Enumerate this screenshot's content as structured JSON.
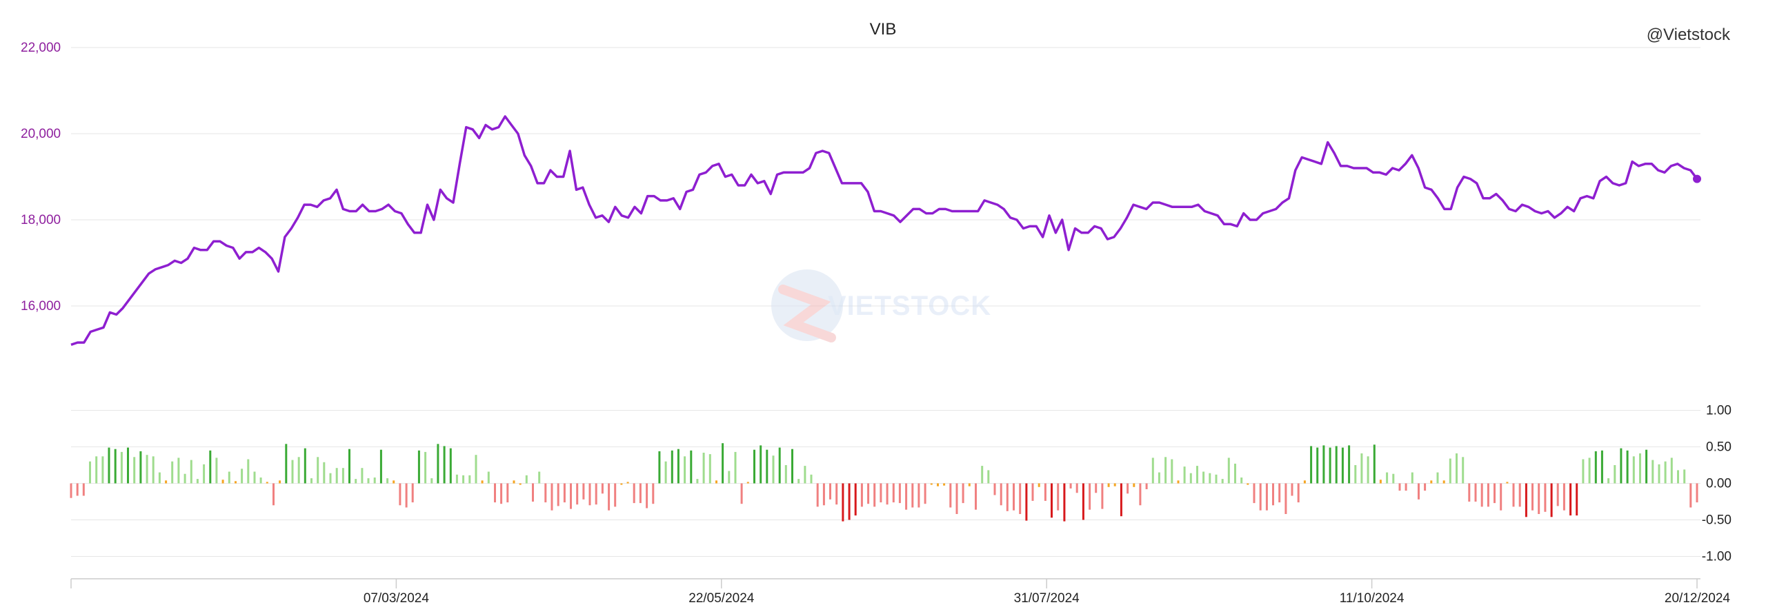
{
  "chart_data": {
    "type": "line",
    "title": "VIB",
    "source_label": "@Vietstock",
    "watermark_text": "VIETSTOCK",
    "price_panel": {
      "ylim": [
        14000,
        22000
      ],
      "yticks": [
        16000,
        18000,
        20000,
        22000
      ],
      "ytick_labels": [
        "16,000",
        "18,000",
        "20,000",
        "22,000"
      ],
      "line_color": "#8e1fd0",
      "tick_color": "#8e1f9e",
      "series": [
        {
          "values": [
            15100,
            15150,
            15150,
            15400,
            15450,
            15500,
            15850,
            15800,
            15950,
            16150,
            16350,
            16550,
            16750,
            16850,
            16900,
            16950,
            17050,
            17000,
            17100,
            17350,
            17300,
            17300,
            17500,
            17500,
            17400,
            17350,
            17100,
            17250,
            17250,
            17350,
            17250,
            17100,
            16800,
            17600,
            17800,
            18050,
            18350,
            18350,
            18300,
            18450,
            18500,
            18700,
            18250,
            18200,
            18200,
            18350,
            18200,
            18200,
            18250,
            18350,
            18200,
            18150,
            17900,
            17700,
            17700,
            18350,
            18000,
            18700,
            18500,
            18400,
            19300,
            20150,
            20100,
            19900,
            20200,
            20100,
            20150,
            20400,
            20200,
            20000,
            19500,
            19250,
            18850,
            18850,
            19150,
            19000,
            19000,
            19600,
            18700,
            18750,
            18350,
            18050,
            18100,
            17950,
            18300,
            18100,
            18050,
            18300,
            18150,
            18550,
            18550,
            18450,
            18450,
            18500,
            18250,
            18650,
            18700,
            19050,
            19100,
            19250,
            19300,
            19000,
            19050,
            18800,
            18800,
            19050,
            18850,
            18900,
            18600,
            19050,
            19100,
            19100,
            19100,
            19100,
            19200,
            19550,
            19600,
            19550,
            19200,
            18850,
            18850,
            18850,
            18850,
            18650,
            18200,
            18200,
            18150,
            18100,
            17950,
            18100,
            18250,
            18250,
            18150,
            18150,
            18250,
            18250,
            18200,
            18200,
            18200,
            18200,
            18200,
            18450,
            18400,
            18350,
            18250,
            18050,
            18000,
            17800,
            17850,
            17850,
            17600,
            18100,
            17700,
            18000,
            17300,
            17800,
            17700,
            17700,
            17850,
            17800,
            17550,
            17600,
            17800,
            18050,
            18350,
            18300,
            18250,
            18400,
            18400,
            18350,
            18300,
            18300,
            18300,
            18300,
            18350,
            18200,
            18150,
            18100,
            17900,
            17900,
            17850,
            18150,
            18000,
            18000,
            18150,
            18200,
            18250,
            18400,
            18500,
            19150,
            19450,
            19400,
            19350,
            19300,
            19800,
            19550,
            19250,
            19250,
            19200,
            19200,
            19200,
            19100,
            19100,
            19050,
            19200,
            19150,
            19300,
            19500,
            19200,
            18750,
            18700,
            18500,
            18250,
            18250,
            18750,
            19000,
            18950,
            18850,
            18500,
            18500,
            18600,
            18450,
            18250,
            18200,
            18350,
            18300,
            18200,
            18150,
            18200,
            18050,
            18150,
            18300,
            18200,
            18500,
            18550,
            18500,
            18900,
            19000,
            18850,
            18800,
            18850,
            19350,
            19250,
            19300,
            19300,
            19150,
            19100,
            19250,
            19300,
            19200,
            19150,
            18950
          ]
        }
      ]
    },
    "oscillator_panel": {
      "ylim": [
        -1.25,
        1.25
      ],
      "yticks": [
        -1.0,
        -0.5,
        0.0,
        0.5,
        1.0
      ],
      "ytick_labels": [
        "-1.00",
        "-0.50",
        "0.00",
        "0.50",
        "1.00"
      ],
      "colors": {
        "strong_pos": "#3aaa35",
        "weak_pos": "#9fdc8e",
        "neutral": "#f5a623",
        "weak_neg": "#f08080",
        "strong_neg": "#d7191c"
      },
      "values": [
        -0.2,
        -0.17,
        -0.17,
        0.3,
        0.37,
        0.37,
        0.49,
        0.47,
        0.43,
        0.49,
        0.36,
        0.44,
        0.39,
        0.37,
        0.15,
        0.04,
        0.3,
        0.35,
        0.13,
        0.32,
        0.06,
        0.26,
        0.45,
        0.35,
        0.05,
        0.16,
        0.03,
        0.2,
        0.33,
        0.16,
        0.08,
        0.02,
        -0.3,
        0.04,
        0.54,
        0.32,
        0.36,
        0.48,
        0.07,
        0.36,
        0.29,
        0.14,
        0.21,
        0.21,
        0.47,
        0.06,
        0.21,
        0.07,
        0.08,
        0.46,
        0.07,
        0.04,
        -0.3,
        -0.33,
        -0.26,
        0.45,
        0.43,
        0.07,
        0.54,
        0.51,
        0.48,
        0.12,
        0.11,
        0.11,
        0.39,
        0.04,
        0.16,
        -0.26,
        -0.28,
        -0.26,
        0.04,
        -0.02,
        0.11,
        -0.25,
        0.16,
        -0.26,
        -0.37,
        -0.31,
        -0.26,
        -0.35,
        -0.29,
        -0.22,
        -0.3,
        -0.29,
        -0.14,
        -0.37,
        -0.32,
        -0.02,
        0.02,
        -0.27,
        -0.27,
        -0.34,
        -0.28,
        0.44,
        0.3,
        0.45,
        0.47,
        0.37,
        0.45,
        0.06,
        0.42,
        0.4,
        0.04,
        0.55,
        0.17,
        0.43,
        -0.28,
        0.02,
        0.46,
        0.52,
        0.46,
        0.38,
        0.49,
        0.25,
        0.47,
        0.06,
        0.24,
        0.12,
        -0.32,
        -0.3,
        -0.22,
        -0.29,
        -0.52,
        -0.5,
        -0.44,
        -0.32,
        -0.28,
        -0.32,
        -0.26,
        -0.29,
        -0.26,
        -0.27,
        -0.36,
        -0.33,
        -0.33,
        -0.28,
        -0.02,
        -0.04,
        -0.03,
        -0.33,
        -0.42,
        -0.27,
        -0.04,
        -0.36,
        0.24,
        0.18,
        -0.16,
        -0.3,
        -0.38,
        -0.37,
        -0.42,
        -0.51,
        -0.24,
        -0.05,
        -0.24,
        -0.47,
        -0.37,
        -0.52,
        -0.07,
        -0.13,
        -0.5,
        -0.36,
        -0.13,
        -0.35,
        -0.05,
        -0.04,
        -0.45,
        -0.14,
        -0.05,
        -0.3,
        -0.08,
        0.35,
        0.15,
        0.36,
        0.33,
        0.04,
        0.23,
        0.14,
        0.24,
        0.16,
        0.14,
        0.12,
        0.06,
        0.35,
        0.27,
        0.08,
        -0.02,
        -0.27,
        -0.37,
        -0.37,
        -0.3,
        -0.26,
        -0.42,
        -0.17,
        -0.26,
        0.04,
        0.51,
        0.49,
        0.52,
        0.49,
        0.51,
        0.49,
        0.52,
        0.25,
        0.41,
        0.37,
        0.53,
        0.05,
        0.15,
        0.13,
        -0.1,
        -0.1,
        0.15,
        -0.22,
        -0.1,
        0.04,
        0.15,
        0.04,
        0.34,
        0.41,
        0.36,
        -0.25,
        -0.25,
        -0.32,
        -0.32,
        -0.27,
        -0.37,
        0.02,
        -0.32,
        -0.32,
        -0.46,
        -0.37,
        -0.42,
        -0.39,
        -0.46,
        -0.31,
        -0.37,
        -0.44,
        -0.44,
        0.33,
        0.35,
        0.44,
        0.45,
        0.07,
        0.25,
        0.48,
        0.45,
        0.37,
        0.41,
        0.46,
        0.32,
        0.26,
        0.3,
        0.35,
        0.18,
        0.19,
        -0.33,
        -0.26
      ]
    },
    "x_tick_labels": [
      "07/03/2024",
      "22/05/2024",
      "31/07/2024",
      "11/10/2024",
      "20/12/2024"
    ],
    "grid": true
  }
}
